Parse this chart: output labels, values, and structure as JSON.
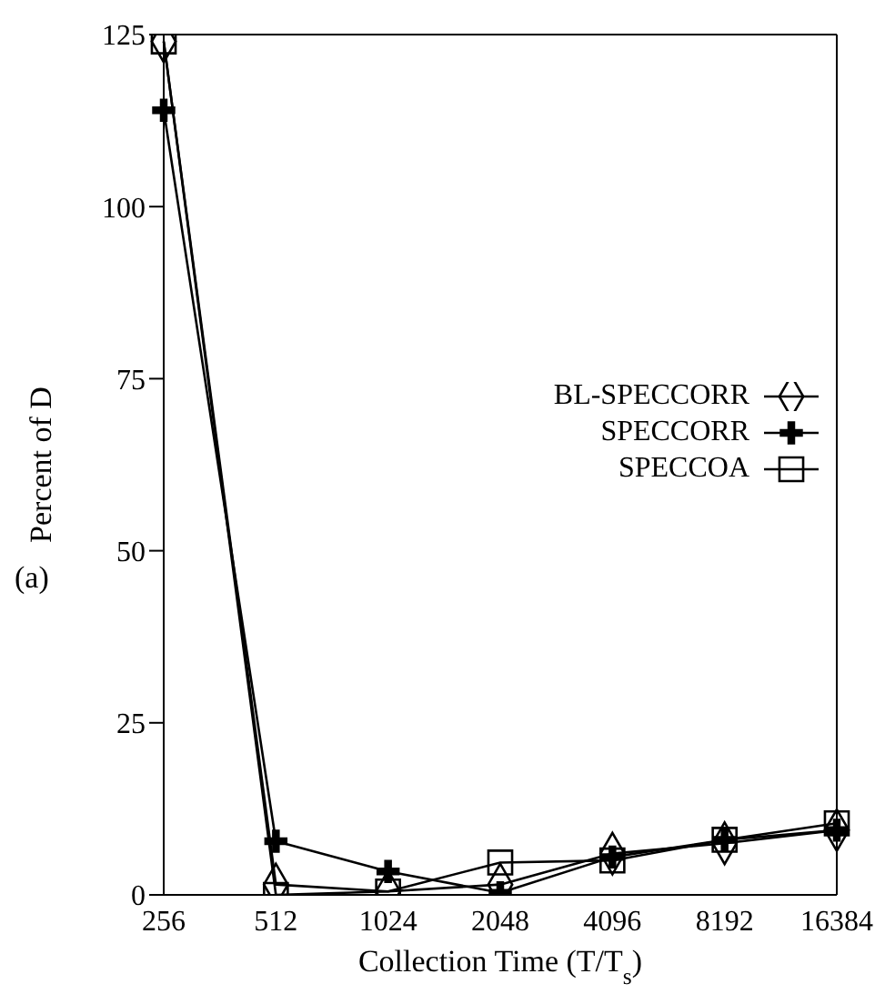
{
  "chart_data": {
    "type": "line",
    "categories": [
      "256",
      "512",
      "1024",
      "2048",
      "4096",
      "8192",
      "16384"
    ],
    "series": [
      {
        "name": "BL-SPECCORR",
        "color": "#000000",
        "marker": "diamond",
        "values": [
          124,
          1.5,
          0.5,
          1.5,
          6,
          7.5,
          9.4
        ]
      },
      {
        "name": "SPECCORR",
        "color": "#000000",
        "marker": "cross",
        "values": [
          114,
          7.8,
          3.4,
          0.3,
          5.5,
          8,
          9.4
        ]
      },
      {
        "name": "SPECCOA",
        "color": "#000000",
        "marker": "square",
        "values": [
          124,
          0,
          0.5,
          4.7,
          5,
          8,
          10.4
        ]
      }
    ],
    "xlabel": "Collection Time (T/T$_{s}$)",
    "ylabel": "Percent of D",
    "ylim": [
      0,
      125
    ],
    "yticks": [
      0,
      25,
      50,
      75,
      100,
      125
    ],
    "annotations": [
      "(a)"
    ],
    "grid": false,
    "legend": "right",
    "line_style": "solid"
  }
}
